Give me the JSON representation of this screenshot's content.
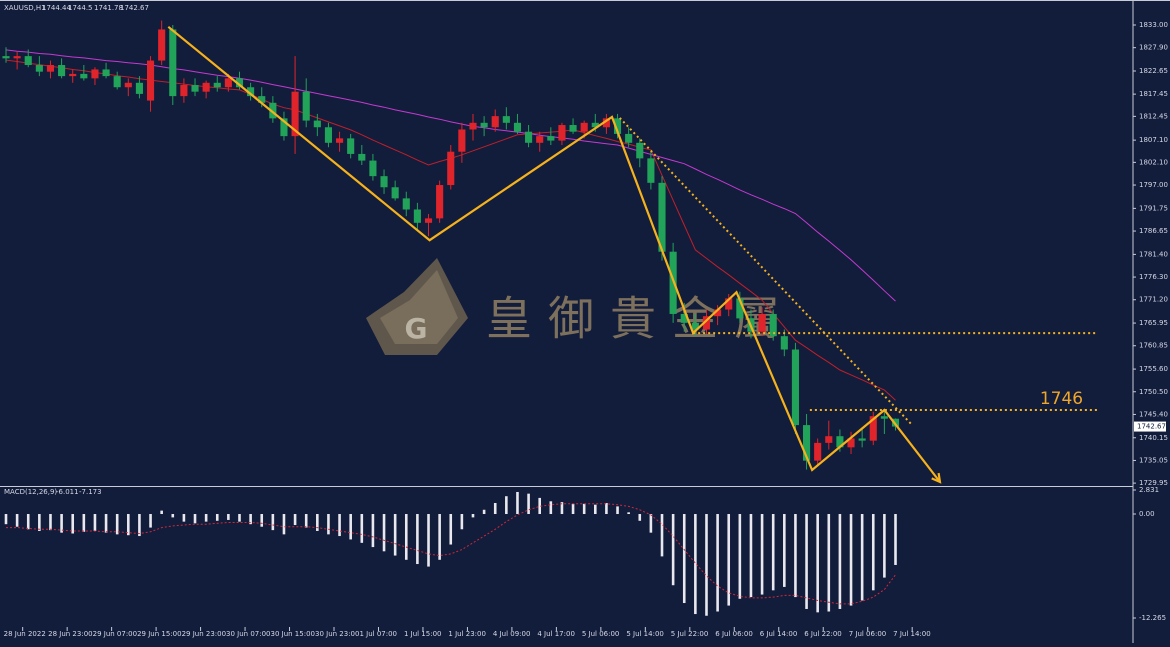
{
  "chart_data": {
    "type": "candlestick",
    "symbol": "XAUUSD,H1",
    "watermark": "皇御貴金屬",
    "up_color": "#e0242b",
    "down_color": "#21a35a",
    "xlim": [
      0,
      101
    ],
    "xticks": [
      {
        "value": 1.5,
        "label": "28 Jun 2022"
      },
      {
        "value": 5.5,
        "label": "28 Jun 23:00"
      },
      {
        "value": 9.5,
        "label": "29 Jun 07:00"
      },
      {
        "value": 13.5,
        "label": "29 Jun 15:00"
      },
      {
        "value": 17.5,
        "label": "29 Jun 23:00"
      },
      {
        "value": 21.5,
        "label": "30 Jun 07:00"
      },
      {
        "value": 25.5,
        "label": "30 Jun 15:00"
      },
      {
        "value": 29.5,
        "label": "30 Jun 23:00"
      },
      {
        "value": 33.5,
        "label": "1 Jul 07:00"
      },
      {
        "value": 37.5,
        "label": "1 Jul 15:00"
      },
      {
        "value": 41.5,
        "label": "1 Jul 23:00"
      },
      {
        "value": 45.5,
        "label": "4 Jul 09:00"
      },
      {
        "value": 49.5,
        "label": "4 Jul 17:00"
      },
      {
        "value": 53.5,
        "label": "5 Jul 06:00"
      },
      {
        "value": 57.5,
        "label": "5 Jul 14:00"
      },
      {
        "value": 61.5,
        "label": "5 Jul 22:00"
      },
      {
        "value": 65.5,
        "label": "6 Jul 06:00"
      },
      {
        "value": 69.5,
        "label": "6 Jul 14:00"
      },
      {
        "value": 73.5,
        "label": "6 Jul 22:00"
      },
      {
        "value": 77.5,
        "label": "7 Jul 06:00"
      },
      {
        "value": 81.5,
        "label": "7 Jul 14:00"
      }
    ],
    "ylim": [
      1729.3,
      1834.8
    ],
    "yticks": [
      {
        "value": 1833.0,
        "label": "1833.00"
      },
      {
        "value": 1827.9,
        "label": "1827.90"
      },
      {
        "value": 1822.65,
        "label": "1822.65"
      },
      {
        "value": 1817.45,
        "label": "1817.45"
      },
      {
        "value": 1812.45,
        "label": "1812.45"
      },
      {
        "value": 1807.1,
        "label": "1807.10"
      },
      {
        "value": 1802.1,
        "label": "1802.10"
      },
      {
        "value": 1797.0,
        "label": "1797.00"
      },
      {
        "value": 1791.75,
        "label": "1791.75"
      },
      {
        "value": 1786.65,
        "label": "1786.65"
      },
      {
        "value": 1781.4,
        "label": "1781.40"
      },
      {
        "value": 1776.3,
        "label": "1776.30"
      },
      {
        "value": 1771.2,
        "label": "1771.20"
      },
      {
        "value": 1765.95,
        "label": "1765.95"
      },
      {
        "value": 1760.85,
        "label": "1760.85"
      },
      {
        "value": 1755.6,
        "label": "1755.60"
      },
      {
        "value": 1750.5,
        "label": "1750.50"
      },
      {
        "value": 1745.4,
        "label": "1745.40"
      },
      {
        "value": 1740.15,
        "label": "1740.15"
      },
      {
        "value": 1735.05,
        "label": "1735.05"
      },
      {
        "value": 1729.95,
        "label": "1729.95"
      }
    ],
    "candles": [
      [
        1826,
        1828,
        1824.5,
        1825.5
      ],
      [
        1825.5,
        1827,
        1823,
        1826
      ],
      [
        1826,
        1827.5,
        1823.5,
        1824
      ],
      [
        1824,
        1826,
        1821.5,
        1822.5
      ],
      [
        1822.5,
        1825,
        1821,
        1824
      ],
      [
        1824,
        1825.5,
        1821,
        1821.5
      ],
      [
        1821.5,
        1823,
        1820,
        1822
      ],
      [
        1822,
        1824,
        1820.5,
        1821
      ],
      [
        1821,
        1823.5,
        1819.5,
        1823
      ],
      [
        1823,
        1824.5,
        1821,
        1821.5
      ],
      [
        1821.5,
        1822.5,
        1818.5,
        1819
      ],
      [
        1819,
        1821,
        1817,
        1820
      ],
      [
        1820,
        1821.5,
        1816.5,
        1817.5
      ],
      [
        1816,
        1826,
        1813.5,
        1825
      ],
      [
        1825,
        1834,
        1824,
        1832
      ],
      [
        1832,
        1833,
        1815,
        1817
      ],
      [
        1817,
        1821,
        1815.5,
        1819.5
      ],
      [
        1819.5,
        1821,
        1817,
        1818
      ],
      [
        1818,
        1820.5,
        1816.5,
        1820
      ],
      [
        1820,
        1821.5,
        1818,
        1819
      ],
      [
        1819,
        1822,
        1818,
        1821
      ],
      [
        1821,
        1822.5,
        1818.5,
        1819
      ],
      [
        1819,
        1820,
        1816,
        1817
      ],
      [
        1817,
        1819,
        1814.5,
        1815.5
      ],
      [
        1815.5,
        1817,
        1811,
        1812
      ],
      [
        1812,
        1813.5,
        1807,
        1808
      ],
      [
        1808,
        1826,
        1804,
        1818
      ],
      [
        1818,
        1821,
        1810,
        1811.5
      ],
      [
        1811.5,
        1813,
        1808,
        1810
      ],
      [
        1810,
        1811,
        1805.5,
        1806.5
      ],
      [
        1806.5,
        1809,
        1804.5,
        1807.5
      ],
      [
        1807.5,
        1808.5,
        1803,
        1804
      ],
      [
        1804,
        1806,
        1801.5,
        1802.5
      ],
      [
        1802.5,
        1804,
        1798,
        1799
      ],
      [
        1799,
        1800.5,
        1795,
        1796.5
      ],
      [
        1796.5,
        1798,
        1793.5,
        1794
      ],
      [
        1794,
        1795.5,
        1790,
        1791.5
      ],
      [
        1791.5,
        1793,
        1787,
        1788.5
      ],
      [
        1788.5,
        1790.5,
        1785.5,
        1789.5
      ],
      [
        1789.5,
        1798,
        1788.5,
        1797
      ],
      [
        1797,
        1806,
        1796,
        1804.5
      ],
      [
        1804.5,
        1811,
        1802,
        1809.5
      ],
      [
        1809.5,
        1813,
        1807,
        1811
      ],
      [
        1811,
        1812.5,
        1808,
        1810
      ],
      [
        1810,
        1814,
        1809,
        1812.5
      ],
      [
        1812.5,
        1814.5,
        1809.5,
        1811
      ],
      [
        1811,
        1813,
        1808.5,
        1809
      ],
      [
        1809,
        1810.5,
        1805.5,
        1806.5
      ],
      [
        1806.5,
        1809,
        1804.5,
        1808
      ],
      [
        1808,
        1810,
        1806,
        1807
      ],
      [
        1807,
        1811,
        1806,
        1810.5
      ],
      [
        1810.5,
        1812,
        1808.5,
        1809
      ],
      [
        1809,
        1811.5,
        1807.5,
        1811
      ],
      [
        1811,
        1813,
        1809,
        1810
      ],
      [
        1810,
        1813,
        1808.5,
        1812
      ],
      [
        1812,
        1813,
        1807.5,
        1808.5
      ],
      [
        1808.5,
        1810,
        1805.5,
        1806.5
      ],
      [
        1806.5,
        1807.5,
        1801,
        1803
      ],
      [
        1803,
        1804.5,
        1796,
        1797.5
      ],
      [
        1797.5,
        1799,
        1780,
        1782
      ],
      [
        1782,
        1784,
        1766,
        1768
      ],
      [
        1768,
        1770.5,
        1764,
        1766
      ],
      [
        1766,
        1768,
        1763,
        1764.5
      ],
      [
        1764.5,
        1769,
        1763.5,
        1767.5
      ],
      [
        1767.5,
        1770,
        1765.5,
        1769
      ],
      [
        1769,
        1772.5,
        1767.5,
        1771.5
      ],
      [
        1771.5,
        1773,
        1766,
        1767
      ],
      [
        1767,
        1769,
        1762.5,
        1764
      ],
      [
        1764,
        1769.5,
        1763,
        1768
      ],
      [
        1768,
        1769,
        1762,
        1763
      ],
      [
        1763,
        1764.5,
        1758.5,
        1760
      ],
      [
        1760,
        1761.5,
        1741,
        1743
      ],
      [
        1743,
        1745.5,
        1733,
        1735
      ],
      [
        1735,
        1740,
        1734,
        1739
      ],
      [
        1739,
        1744,
        1737.5,
        1740.5
      ],
      [
        1740.5,
        1742,
        1737,
        1738
      ],
      [
        1738,
        1741.5,
        1736.5,
        1740
      ],
      [
        1740,
        1742.5,
        1738,
        1739.5
      ],
      [
        1739.5,
        1746,
        1738.5,
        1745
      ],
      [
        1745,
        1746.5,
        1741,
        1744.44
      ],
      [
        1744.44,
        1744.5,
        1741.78,
        1742.67
      ]
    ],
    "moving_averages": [
      {
        "color": "#c0202a",
        "values": [
          1825.1,
          1824.8,
          1824.4,
          1824.1,
          1823.7,
          1823.4,
          1823.0,
          1822.7,
          1822.3,
          1822.0,
          1821.6,
          1821.3,
          1820.9,
          1820.6,
          1820.3,
          1820.0,
          1819.7,
          1819.4,
          1819.1,
          1818.9,
          1818.6,
          1818.4,
          1817.4,
          1816.3,
          1815.2,
          1814.4,
          1813.9,
          1813.0,
          1812.1,
          1811.2,
          1810.3,
          1809.4,
          1808.3,
          1807.1,
          1806.0,
          1804.9,
          1803.8,
          1802.6,
          1801.5,
          1802.3,
          1803.0,
          1803.8,
          1804.7,
          1805.6,
          1806.5,
          1807.4,
          1808.3,
          1808.5,
          1808.7,
          1808.9,
          1809.1,
          1809.4,
          1808.8,
          1808.1,
          1807.5,
          1806.8,
          1806.2,
          1805.5,
          1804.9,
          1799.2,
          1793.6,
          1788.0,
          1782.4,
          1780.5,
          1778.6,
          1776.8,
          1774.9,
          1773.0,
          1771.1,
          1768.1,
          1765.1,
          1762.1,
          1760.4,
          1758.7,
          1757.1,
          1755.4,
          1754.3,
          1753.2,
          1752.0,
          1750.9,
          1748.6
        ]
      },
      {
        "color": "#c43ad0",
        "values": [
          1827.4,
          1827.1,
          1826.9,
          1826.6,
          1826.4,
          1826.1,
          1825.8,
          1825.6,
          1825.3,
          1825.0,
          1824.8,
          1824.5,
          1824.3,
          1824.0,
          1823.6,
          1823.2,
          1822.9,
          1822.5,
          1822.1,
          1821.7,
          1821.4,
          1821.0,
          1820.6,
          1820.1,
          1819.6,
          1819.1,
          1818.6,
          1818.1,
          1817.6,
          1817.1,
          1816.6,
          1816.1,
          1815.6,
          1815.0,
          1814.5,
          1813.9,
          1813.4,
          1812.9,
          1812.3,
          1811.8,
          1811.2,
          1810.7,
          1810.2,
          1809.9,
          1809.5,
          1809.2,
          1808.9,
          1808.6,
          1808.2,
          1807.9,
          1807.6,
          1807.3,
          1806.9,
          1806.6,
          1806.3,
          1806.0,
          1805.3,
          1804.6,
          1803.9,
          1803.2,
          1802.5,
          1801.8,
          1800.6,
          1799.4,
          1798.3,
          1797.1,
          1795.9,
          1794.8,
          1793.8,
          1792.7,
          1791.7,
          1790.6,
          1788.5,
          1786.4,
          1784.4,
          1782.3,
          1780.2,
          1777.9,
          1775.6,
          1773.2,
          1770.9
        ]
      }
    ],
    "zigzag": {
      "color": "#f5b21c",
      "x": [
        14.6,
        38.1,
        54.5,
        61.8,
        65.7,
        72.5,
        79.0,
        84.0
      ],
      "y": [
        1832.6,
        1784.6,
        1812.3,
        1763.7,
        1772.9,
        1732.9,
        1746.4,
        1730.2
      ]
    },
    "trendline": {
      "color": "#f5b21c",
      "x": [
        55.2,
        81.5
      ],
      "y": [
        1812.1,
        1743.0
      ]
    },
    "levels": [
      {
        "value": 1763.7,
        "x": [
          61.8,
          98.2
        ]
      },
      {
        "value": 1746.4,
        "x": [
          72.3,
          98.2
        ],
        "label": "1746"
      }
    ],
    "macd": {
      "title": "MACD(12,26,9)",
      "color": "#e8e8ee",
      "signal_color": "#d0283a",
      "ylim": [
        -14.86,
        2.95
      ],
      "yticks": [
        2.831,
        {
          "value": 0,
          "label": "0.00"
        },
        -12.265
      ],
      "histogram": [
        -1.2,
        -1.5,
        -1.8,
        -2.0,
        -1.9,
        -2.2,
        -2.3,
        -2.1,
        -2.0,
        -2.2,
        -2.4,
        -2.5,
        -2.6,
        -1.6,
        0.4,
        -0.4,
        -0.9,
        -1.1,
        -0.9,
        -0.8,
        -0.7,
        -0.9,
        -1.2,
        -1.5,
        -1.9,
        -2.4,
        -1.3,
        -1.6,
        -2.0,
        -2.4,
        -2.6,
        -3.0,
        -3.4,
        -3.9,
        -4.4,
        -4.9,
        -5.4,
        -5.9,
        -6.2,
        -5.4,
        -3.6,
        -1.8,
        -0.4,
        0.5,
        1.3,
        2.1,
        2.6,
        2.4,
        1.9,
        1.5,
        1.4,
        1.2,
        1.2,
        1.1,
        1.3,
        0.9,
        0.2,
        -0.8,
        -2.2,
        -5.0,
        -8.4,
        -10.5,
        -11.8,
        -12.0,
        -11.5,
        -10.8,
        -10.0,
        -9.8,
        -9.5,
        -9.0,
        -8.6,
        -9.8,
        -11.2,
        -11.6,
        -11.5,
        -11.2,
        -10.8,
        -10.2,
        -9.0,
        -7.5,
        -6.011
      ],
      "signal": [
        -1.6,
        -1.6,
        -1.7,
        -1.8,
        -1.8,
        -1.9,
        -2.0,
        -2.0,
        -2.0,
        -2.1,
        -2.1,
        -2.2,
        -2.3,
        -2.1,
        -1.6,
        -1.4,
        -1.3,
        -1.2,
        -1.2,
        -1.1,
        -1.0,
        -1.0,
        -1.0,
        -1.1,
        -1.3,
        -1.5,
        -1.5,
        -1.5,
        -1.6,
        -1.8,
        -2.0,
        -2.2,
        -2.4,
        -2.7,
        -3.1,
        -3.5,
        -3.9,
        -4.3,
        -4.7,
        -4.9,
        -4.7,
        -4.2,
        -3.4,
        -2.6,
        -1.8,
        -0.9,
        -0.1,
        0.5,
        0.9,
        1.1,
        1.2,
        1.2,
        1.2,
        1.2,
        1.2,
        1.1,
        0.9,
        0.5,
        -0.1,
        -1.2,
        -2.6,
        -4.2,
        -5.8,
        -7.3,
        -8.5,
        -9.3,
        -9.7,
        -9.9,
        -9.9,
        -9.8,
        -9.6,
        -9.6,
        -9.9,
        -10.2,
        -10.4,
        -10.6,
        -10.6,
        -10.3,
        -9.8,
        -8.9,
        -7.173
      ]
    }
  }
}
